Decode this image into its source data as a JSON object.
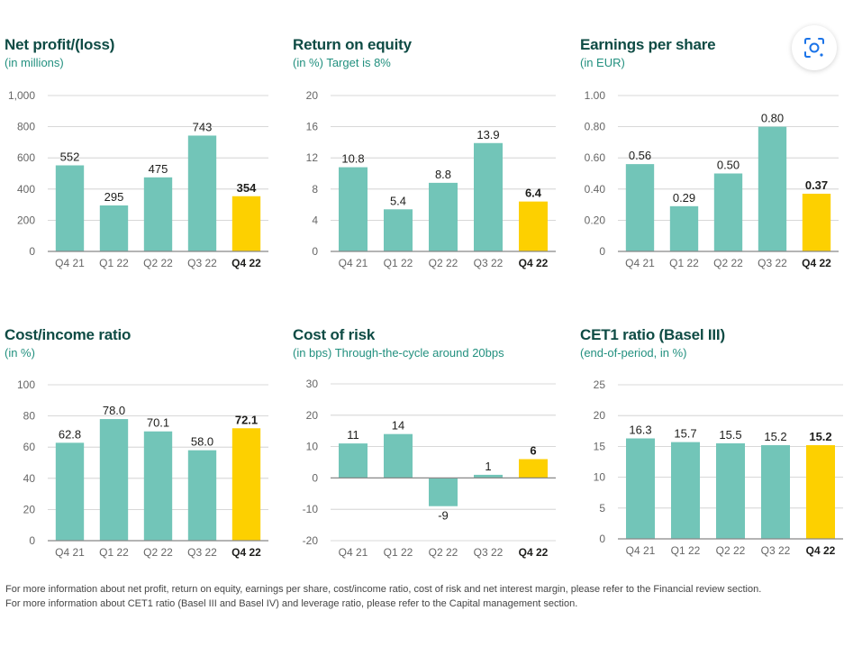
{
  "colors": {
    "bar": "#72c5b8",
    "highlight": "#fdd000",
    "title": "#0e4b44",
    "subtitle": "#22907f",
    "grid": "#cccccc",
    "axis": "#888888",
    "tick": "#666666"
  },
  "chart_data": [
    {
      "type": "bar",
      "title": "Net profit/(loss)",
      "subtitle": "(in millions)",
      "categories": [
        "Q4 21",
        "Q1 22",
        "Q2 22",
        "Q3 22",
        "Q4 22"
      ],
      "values": [
        552,
        295,
        475,
        743,
        354
      ],
      "value_labels": [
        "552",
        "295",
        "475",
        "743",
        "354"
      ],
      "yticks": [
        0,
        200,
        400,
        600,
        800,
        1000
      ],
      "ytick_labels": [
        "0",
        "200",
        "400",
        "600",
        "800",
        "1,000"
      ],
      "ylim": [
        0,
        1000
      ],
      "highlight_index": 4
    },
    {
      "type": "bar",
      "title": "Return on equity",
      "subtitle": "(in %) Target is 8%",
      "categories": [
        "Q4 21",
        "Q1 22",
        "Q2 22",
        "Q3 22",
        "Q4 22"
      ],
      "values": [
        10.8,
        5.4,
        8.8,
        13.9,
        6.4
      ],
      "value_labels": [
        "10.8",
        "5.4",
        "8.8",
        "13.9",
        "6.4"
      ],
      "yticks": [
        0,
        4,
        8,
        12,
        16,
        20
      ],
      "ytick_labels": [
        "0",
        "4",
        "8",
        "12",
        "16",
        "20"
      ],
      "ylim": [
        0,
        20
      ],
      "highlight_index": 4
    },
    {
      "type": "bar",
      "title": "Earnings per share",
      "subtitle": "(in EUR)",
      "categories": [
        "Q4 21",
        "Q1 22",
        "Q2 22",
        "Q3 22",
        "Q4 22"
      ],
      "values": [
        0.56,
        0.29,
        0.5,
        0.8,
        0.37
      ],
      "value_labels": [
        "0.56",
        "0.29",
        "0.50",
        "0.80",
        "0.37"
      ],
      "yticks": [
        0,
        0.2,
        0.4,
        0.6,
        0.8,
        1.0
      ],
      "ytick_labels": [
        "0",
        "0.20",
        "0.40",
        "0.60",
        "0.80",
        "1.00"
      ],
      "ylim": [
        0,
        1.0
      ],
      "highlight_index": 4
    },
    {
      "type": "bar",
      "title": "Cost/income ratio",
      "subtitle": "(in %)",
      "categories": [
        "Q4 21",
        "Q1 22",
        "Q2 22",
        "Q3 22",
        "Q4 22"
      ],
      "values": [
        62.8,
        78.0,
        70.1,
        58.0,
        72.1
      ],
      "value_labels": [
        "62.8",
        "78.0",
        "70.1",
        "58.0",
        "72.1"
      ],
      "yticks": [
        0,
        20,
        40,
        60,
        80,
        100
      ],
      "ytick_labels": [
        "0",
        "20",
        "40",
        "60",
        "80",
        "100"
      ],
      "ylim": [
        0,
        100
      ],
      "highlight_index": 4
    },
    {
      "type": "bar",
      "title": "Cost of risk",
      "subtitle": "(in bps) Through-the-cycle around 20bps",
      "categories": [
        "Q4 21",
        "Q1 22",
        "Q2 22",
        "Q3 22",
        "Q4 22"
      ],
      "values": [
        11,
        14,
        -9,
        1,
        6
      ],
      "value_labels": [
        "11",
        "14",
        "-9",
        "1",
        "6"
      ],
      "yticks": [
        -20,
        -10,
        0,
        10,
        20,
        30
      ],
      "ytick_labels": [
        "-20",
        "-10",
        "0",
        "10",
        "20",
        "30"
      ],
      "ylim": [
        -20,
        30
      ],
      "highlight_index": 4
    },
    {
      "type": "bar",
      "title": "CET1 ratio (Basel III)",
      "subtitle": "(end-of-period, in %)",
      "categories": [
        "Q4 21",
        "Q1 22",
        "Q2 22",
        "Q3 22",
        "Q4 22"
      ],
      "values": [
        16.3,
        15.7,
        15.5,
        15.2,
        15.2
      ],
      "value_labels": [
        "16.3",
        "15.7",
        "15.5",
        "15.2",
        "15.2"
      ],
      "yticks": [
        0,
        5,
        10,
        15,
        20,
        25
      ],
      "ytick_labels": [
        "0",
        "5",
        "10",
        "15",
        "20",
        "25"
      ],
      "ylim": [
        0,
        25
      ],
      "highlight_index": 4
    }
  ],
  "footnotes": [
    "For more information about net profit, return on equity, earnings per share, cost/income ratio, cost of risk and net interest margin, please refer to the Financial review section.",
    "For more information about CET1 ratio (Basel III and Basel IV) and leverage ratio, please refer to the Capital management section."
  ],
  "lens_button": {
    "icon": "lens-search-icon"
  }
}
